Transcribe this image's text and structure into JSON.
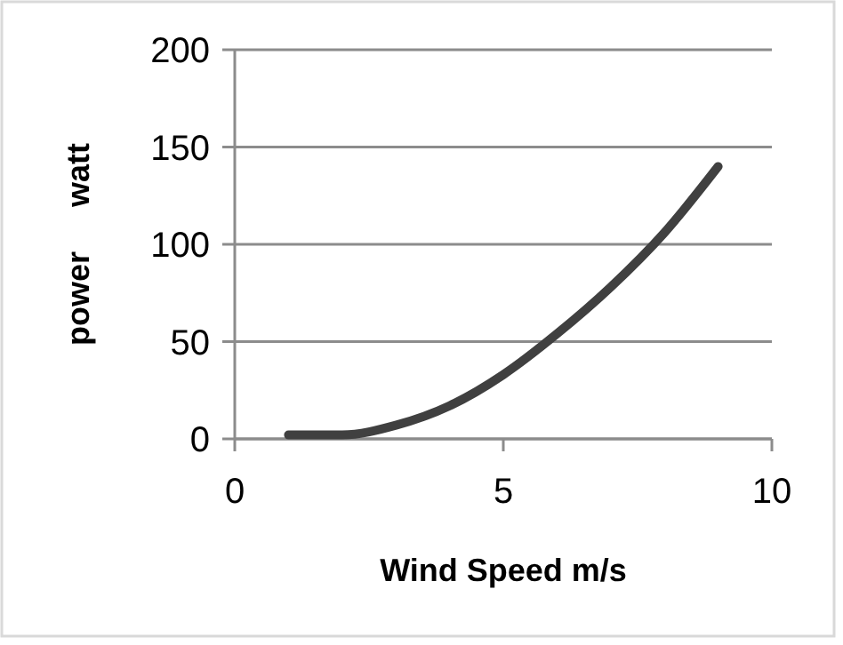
{
  "chart_data": {
    "type": "line",
    "xlabel": "Wind Speed m/s",
    "ylabel": "power     watt",
    "x": [
      1,
      2,
      3,
      4,
      5,
      6,
      7,
      8,
      9
    ],
    "series": [
      {
        "color": "#404040",
        "values": [
          2,
          2,
          7,
          17,
          33,
          54,
          78,
          106,
          140
        ]
      }
    ],
    "xlim": [
      0,
      10
    ],
    "xticks": [
      0,
      5,
      10
    ],
    "ylim": [
      0,
      200
    ],
    "yticks": [
      0,
      50,
      100,
      150,
      200
    ],
    "grid": "y",
    "marker": "none",
    "line_style": "solid"
  }
}
